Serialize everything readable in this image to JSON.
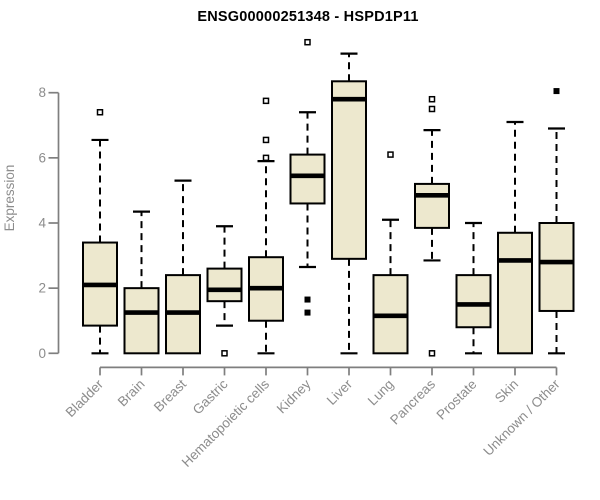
{
  "chart_data": {
    "type": "boxplot",
    "title": "ENSG00000251348 - HSPD1P11",
    "ylabel": "Expression",
    "xlabel": "",
    "yticks": [
      0,
      2,
      4,
      6,
      8
    ],
    "ylim": [
      0,
      8
    ],
    "grid": false,
    "legend": "none",
    "colors": {
      "box_fill": "#EDE8CE",
      "box_border": "#000000",
      "median": "#000000",
      "whisker": "#000000",
      "axis_line": "#7F7F7F",
      "axis_text": "#8C8C8C",
      "title_text": "#000000",
      "background": "#FFFFFF"
    },
    "categories": [
      "Bladder",
      "Brain",
      "Breast",
      "Gastric",
      "Hematopoietic cells",
      "Kidney",
      "Liver",
      "Lung",
      "Pancreas",
      "Prostate",
      "Skin",
      "Unknown / Other"
    ],
    "series": [
      {
        "category": "Bladder",
        "whisker_low": 0,
        "q1": 0.85,
        "median": 2.1,
        "q3": 3.4,
        "whisker_high": 6.55,
        "outliers": [
          7.4
        ],
        "outliers_filled": []
      },
      {
        "category": "Brain",
        "whisker_low": 0,
        "q1": 0,
        "median": 1.25,
        "q3": 2.0,
        "whisker_high": 4.35,
        "outliers": [],
        "outliers_filled": []
      },
      {
        "category": "Breast",
        "whisker_low": 0,
        "q1": 0,
        "median": 1.25,
        "q3": 2.4,
        "whisker_high": 5.3,
        "outliers": [],
        "outliers_filled": []
      },
      {
        "category": "Gastric",
        "whisker_low": 0.85,
        "q1": 1.6,
        "median": 1.95,
        "q3": 2.6,
        "whisker_high": 3.9,
        "outliers": [
          0
        ],
        "outliers_filled": []
      },
      {
        "category": "Hematopoietic cells",
        "whisker_low": 0,
        "q1": 1.0,
        "median": 2.0,
        "q3": 2.95,
        "whisker_high": 5.9,
        "outliers": [
          7.75,
          6.55,
          6.0
        ],
        "outliers_filled": []
      },
      {
        "category": "Kidney",
        "whisker_low": 2.65,
        "q1": 4.6,
        "median": 5.45,
        "q3": 6.1,
        "whisker_high": 7.4,
        "outliers": [
          9.55
        ],
        "outliers_filled": [
          1.65,
          1.25
        ]
      },
      {
        "category": "Liver",
        "whisker_low": 0,
        "q1": 2.9,
        "median": 7.8,
        "q3": 8.35,
        "whisker_high": 9.2,
        "outliers": [],
        "outliers_filled": []
      },
      {
        "category": "Lung",
        "whisker_low": 0,
        "q1": 0,
        "median": 1.15,
        "q3": 2.4,
        "whisker_high": 4.1,
        "outliers": [
          6.1
        ],
        "outliers_filled": []
      },
      {
        "category": "Pancreas",
        "whisker_low": 2.85,
        "q1": 3.85,
        "median": 4.85,
        "q3": 5.2,
        "whisker_high": 6.85,
        "outliers": [
          7.8,
          7.5,
          0
        ],
        "outliers_filled": []
      },
      {
        "category": "Prostate",
        "whisker_low": 0,
        "q1": 0.8,
        "median": 1.5,
        "q3": 2.4,
        "whisker_high": 4.0,
        "outliers": [],
        "outliers_filled": []
      },
      {
        "category": "Skin",
        "whisker_low": 0,
        "q1": 0,
        "median": 2.85,
        "q3": 3.7,
        "whisker_high": 7.1,
        "outliers": [],
        "outliers_filled": []
      },
      {
        "category": "Unknown / Other",
        "whisker_low": 0,
        "q1": 1.3,
        "median": 2.8,
        "q3": 4.0,
        "whisker_high": 6.9,
        "outliers": [],
        "outliers_filled": [
          8.05
        ]
      }
    ]
  }
}
